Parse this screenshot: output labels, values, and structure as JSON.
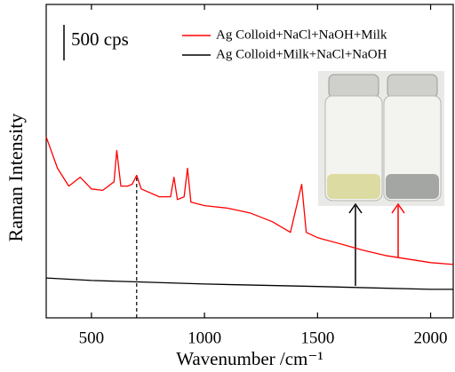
{
  "chart_data": {
    "type": "line",
    "x_label": "Wavenumber /cm⁻¹",
    "y_label": "Raman Intensity",
    "scale_bar": {
      "value": 500,
      "label": "500 cps"
    },
    "xlim": [
      300,
      2100
    ],
    "xticks": [
      500,
      1000,
      1500,
      2000
    ],
    "ylim": [
      0,
      4400
    ],
    "reference_line_x": 700,
    "legend": "upper right",
    "series": [
      {
        "name": "Ag Colloid+NaCl+NaOH+Milk",
        "color": "#ff0000",
        "x": [
          300,
          350,
          400,
          450,
          500,
          550,
          600,
          612,
          630,
          660,
          680,
          700,
          720,
          800,
          850,
          865,
          880,
          910,
          925,
          940,
          1000,
          1100,
          1200,
          1300,
          1380,
          1430,
          1450,
          1500,
          1600,
          1700,
          1800,
          1900,
          2000,
          2100
        ],
        "values": [
          2540,
          2100,
          1850,
          1975,
          1810,
          1790,
          1910,
          2350,
          1850,
          1850,
          1875,
          2000,
          1810,
          1700,
          1700,
          1975,
          1660,
          1700,
          2100,
          1625,
          1575,
          1540,
          1475,
          1350,
          1200,
          1875,
          1200,
          1125,
          1040,
          950,
          875,
          825,
          775,
          750
        ]
      },
      {
        "name": "Ag Colloid+Milk+NaCl+NaOH",
        "color": "#000000",
        "x": [
          300,
          500,
          1000,
          1500,
          2000,
          2100
        ],
        "values": [
          560,
          525,
          475,
          440,
          400,
          400
        ]
      }
    ]
  }
}
